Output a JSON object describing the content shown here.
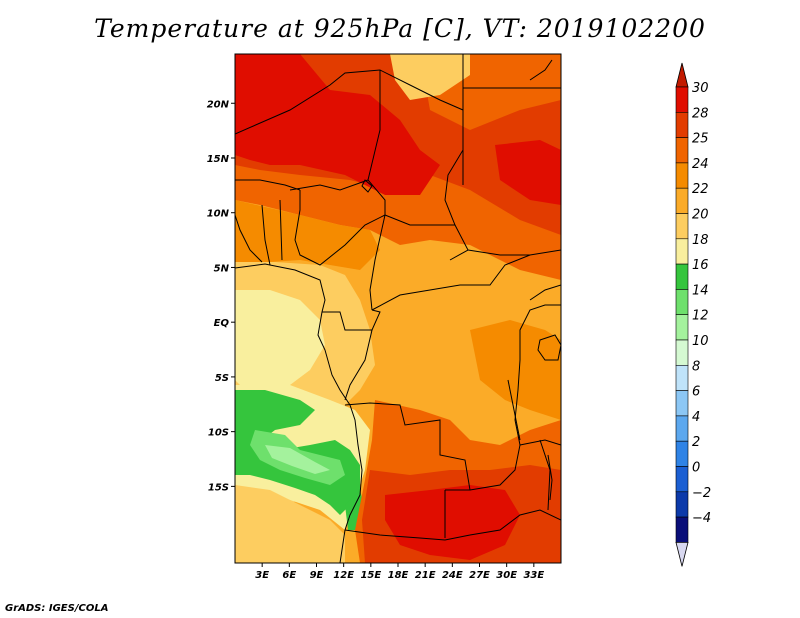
{
  "title": "Temperature at 925hPa [C], VT: 2019102200",
  "credit": "GrADS: IGES/COLA",
  "map": {
    "variable": "Temperature at 925hPa",
    "units": "C",
    "valid_time": "2019102200",
    "lon_range": [
      0,
      36
    ],
    "lat_range": [
      -22,
      24.5
    ],
    "lat_ticks": [
      {
        "label": "20N",
        "value": 20
      },
      {
        "label": "15N",
        "value": 15
      },
      {
        "label": "10N",
        "value": 10
      },
      {
        "label": "5N",
        "value": 5
      },
      {
        "label": "EQ",
        "value": 0
      },
      {
        "label": "5S",
        "value": -5
      },
      {
        "label": "10S",
        "value": -10
      },
      {
        "label": "15S",
        "value": -15
      }
    ],
    "lon_ticks": [
      {
        "label": "3E",
        "value": 3
      },
      {
        "label": "6E",
        "value": 6
      },
      {
        "label": "9E",
        "value": 9
      },
      {
        "label": "12E",
        "value": 12
      },
      {
        "label": "15E",
        "value": 15
      },
      {
        "label": "18E",
        "value": 18
      },
      {
        "label": "21E",
        "value": 21
      },
      {
        "label": "24E",
        "value": 24
      },
      {
        "label": "27E",
        "value": 27
      },
      {
        "label": "30E",
        "value": 30
      },
      {
        "label": "33E",
        "value": 33
      }
    ]
  },
  "colorbar": {
    "labels": [
      "30",
      "28",
      "25",
      "24",
      "22",
      "20",
      "18",
      "16",
      "14",
      "12",
      "10",
      "8",
      "6",
      "4",
      "2",
      "0",
      "−2",
      "−4"
    ],
    "colors": [
      "#e00d00",
      "#e23c00",
      "#f06400",
      "#f58b00",
      "#fbab28",
      "#fdcd60",
      "#f9ef9e",
      "#35c53d",
      "#6ee06c",
      "#a4f29d",
      "#d5f9d2",
      "#bfe3fa",
      "#8cc7f5",
      "#5ca8ef",
      "#2f83e6",
      "#1b5fd3",
      "#0c3aaa",
      "#0a0f79"
    ],
    "top_triangle_color": "#c21a00",
    "bottom_triangle_color": "#d8d8f0"
  }
}
